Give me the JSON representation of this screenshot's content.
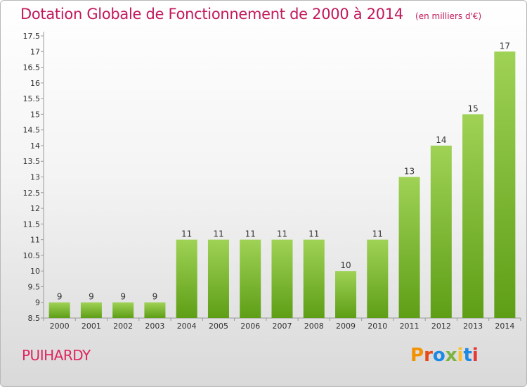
{
  "header": {
    "title": "Dotation Globale de Fonctionnement de 2000 à 2014",
    "unit": "(en milliers d'€)"
  },
  "footer": {
    "commune": "PUIHARDY",
    "logo_text": "Proxiti"
  },
  "colors": {
    "title": "#c2185b",
    "commune": "#e0245e",
    "bar_light": "#9fd255",
    "bar_dark": "#5e9e16",
    "logo_p": "#f39200",
    "logo_r": "#e64a19",
    "logo_o": "#1e88e5",
    "logo_x": "#7cb342",
    "logo_i": "#fbc02d",
    "logo_t": "#1e88e5",
    "logo_i2": "#e53935"
  },
  "chart_data": {
    "type": "bar",
    "title": "Dotation Globale de Fonctionnement de 2000 à 2014",
    "subtitle": "(en milliers d'€)",
    "xlabel": "",
    "ylabel": "",
    "categories": [
      "2000",
      "2001",
      "2002",
      "2003",
      "2004",
      "2005",
      "2006",
      "2007",
      "2008",
      "2009",
      "2010",
      "2011",
      "2012",
      "2013",
      "2014"
    ],
    "values": [
      9,
      9,
      9,
      9,
      11,
      11,
      11,
      11,
      11,
      10,
      11,
      13,
      14,
      15,
      17
    ],
    "value_labels": [
      "9",
      "9",
      "9",
      "9",
      "11",
      "11",
      "11",
      "11",
      "11",
      "10",
      "11",
      "13",
      "14",
      "15",
      "17"
    ],
    "ylim": [
      8.5,
      17.5
    ],
    "yticks": [
      8.5,
      9,
      9.5,
      10,
      10.5,
      11,
      11.5,
      12,
      12.5,
      13,
      13.5,
      14,
      14.5,
      15,
      15.5,
      16,
      16.5,
      17,
      17.5
    ],
    "ytick_labels": [
      "8.5",
      "9",
      "9.5",
      "10",
      "10.5",
      "11",
      "11.5",
      "12",
      "12.5",
      "13",
      "13.5",
      "14",
      "14.5",
      "15",
      "15.5",
      "16",
      "16.5",
      "17",
      "17.5"
    ],
    "grid": false
  }
}
